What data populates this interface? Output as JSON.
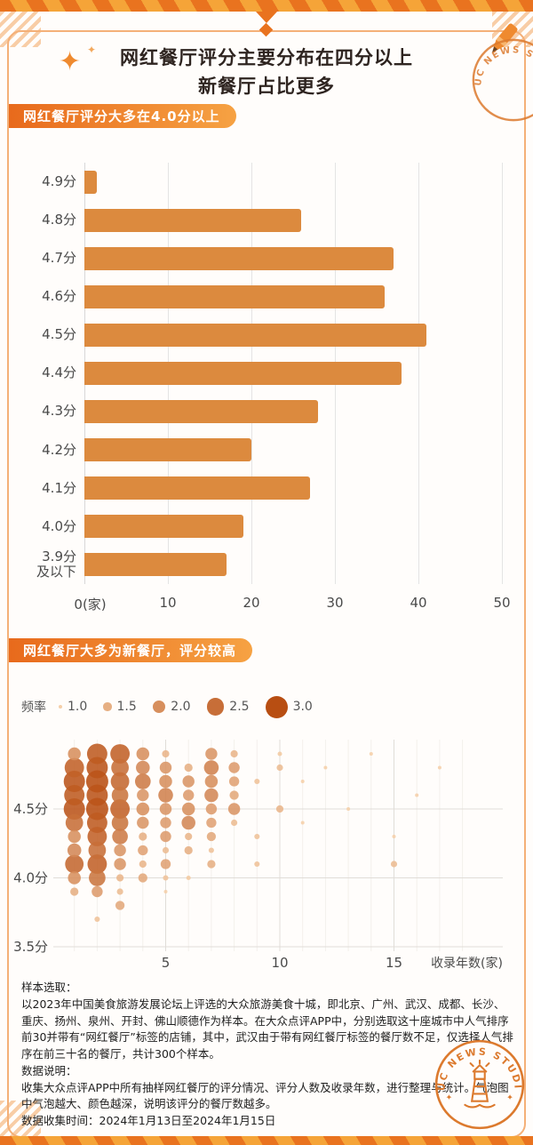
{
  "header": {
    "title_line1": "网红餐厅评分主要分布在四分以上",
    "title_line2": "新餐厅占比更多",
    "sparkle_icon": "✦"
  },
  "sections": {
    "bar_banner": "网红餐厅评分大多在4.0分以上",
    "bubble_banner": "网红餐厅大多为新餐厅，评分较高"
  },
  "colors": {
    "accent_orange": "#E9731F",
    "banner_gradient_start": "#E86A1C",
    "banner_gradient_end": "#F6A243",
    "bar_fill": "#DC8A3E",
    "bubble_low": "#F5CFA8",
    "bubble_high": "#B84E12",
    "stamp": "#DC7A2E"
  },
  "chart_data": [
    {
      "type": "bar",
      "orientation": "horizontal",
      "title": "网红餐厅评分大多在4.0分以上",
      "categories": [
        "4.9分",
        "4.8分",
        "4.7分",
        "4.6分",
        "4.5分",
        "4.4分",
        "4.3分",
        "4.2分",
        "4.1分",
        "4.0分",
        "3.9分\n及以下"
      ],
      "values": [
        1.5,
        26,
        37,
        36,
        41,
        38,
        28,
        20,
        27,
        19,
        17
      ],
      "xlim": [
        0,
        50
      ],
      "x_ticks": [
        {
          "value": 0,
          "label": "0(家)"
        },
        {
          "value": 10,
          "label": "10"
        },
        {
          "value": 20,
          "label": "20"
        },
        {
          "value": 30,
          "label": "30"
        },
        {
          "value": 40,
          "label": "40"
        },
        {
          "value": 50,
          "label": "50"
        }
      ],
      "bar_color": "#DC8A3E",
      "grid": true
    },
    {
      "type": "scatter",
      "subtype": "bubble",
      "title": "网红餐厅大多为新餐厅，评分较高",
      "xlabel": "收录年数(家)",
      "legend": {
        "title": "频率",
        "sizes": [
          1.0,
          1.5,
          2.0,
          2.5,
          3.0
        ],
        "position": "top-left"
      },
      "y_ticks": [
        {
          "value": 4.5,
          "label": "4.5分"
        },
        {
          "value": 4.0,
          "label": "4.0分"
        },
        {
          "value": 3.5,
          "label": "3.5分"
        }
      ],
      "x_ticks": [
        {
          "value": 5,
          "label": "5"
        },
        {
          "value": 10,
          "label": "10"
        },
        {
          "value": 15,
          "label": "15"
        }
      ],
      "xlim": [
        0,
        20
      ],
      "ylim": [
        3.4,
        5.0
      ],
      "color_scale": {
        "low": "#F5CFA8",
        "high": "#B84E12"
      },
      "points": [
        [
          1,
          4.9,
          2
        ],
        [
          2,
          4.9,
          2.8
        ],
        [
          3,
          4.9,
          2.7
        ],
        [
          4,
          4.9,
          2
        ],
        [
          5,
          4.9,
          1.4
        ],
        [
          7,
          4.9,
          1.9
        ],
        [
          8,
          4.9,
          1.4
        ],
        [
          10,
          4.9,
          1.1
        ],
        [
          14,
          4.9,
          1
        ],
        [
          1,
          4.8,
          2.7
        ],
        [
          2,
          4.8,
          2.9
        ],
        [
          3,
          4.8,
          2.5
        ],
        [
          4,
          4.8,
          2.1
        ],
        [
          5,
          4.8,
          1.9
        ],
        [
          6,
          4.8,
          1.5
        ],
        [
          7,
          4.8,
          2.2
        ],
        [
          8,
          4.8,
          1.8
        ],
        [
          10,
          4.8,
          1.3
        ],
        [
          12,
          4.8,
          1
        ],
        [
          17,
          4.8,
          1
        ],
        [
          1,
          4.7,
          2.9
        ],
        [
          2,
          4.7,
          3
        ],
        [
          3,
          4.7,
          2.6
        ],
        [
          4,
          4.7,
          2.3
        ],
        [
          5,
          4.7,
          2
        ],
        [
          6,
          4.7,
          1.9
        ],
        [
          7,
          4.7,
          2
        ],
        [
          8,
          4.7,
          1.7
        ],
        [
          9,
          4.7,
          1.2
        ],
        [
          11,
          4.7,
          1
        ],
        [
          1,
          4.6,
          2.8
        ],
        [
          2,
          4.6,
          2.9
        ],
        [
          3,
          4.6,
          2.4
        ],
        [
          4,
          4.6,
          1.9
        ],
        [
          5,
          4.6,
          2.2
        ],
        [
          6,
          4.6,
          1.8
        ],
        [
          7,
          4.6,
          2.1
        ],
        [
          8,
          4.6,
          1.6
        ],
        [
          16,
          4.6,
          1
        ],
        [
          1,
          4.5,
          2.9
        ],
        [
          2,
          4.5,
          3
        ],
        [
          3,
          4.5,
          2.7
        ],
        [
          4,
          4.5,
          2
        ],
        [
          5,
          4.5,
          1.9
        ],
        [
          6,
          4.5,
          2
        ],
        [
          7,
          4.5,
          1.8
        ],
        [
          8,
          4.5,
          1.9
        ],
        [
          10,
          4.5,
          1.4
        ],
        [
          13,
          4.5,
          1
        ],
        [
          1,
          4.4,
          2.5
        ],
        [
          2,
          4.4,
          2.8
        ],
        [
          3,
          4.4,
          2.4
        ],
        [
          4,
          4.4,
          1.9
        ],
        [
          5,
          4.4,
          1.8
        ],
        [
          6,
          4.4,
          2.1
        ],
        [
          7,
          4.4,
          1.7
        ],
        [
          8,
          4.4,
          1.3
        ],
        [
          11,
          4.4,
          1
        ],
        [
          1,
          4.3,
          2
        ],
        [
          2,
          4.3,
          2.7
        ],
        [
          3,
          4.3,
          2.3
        ],
        [
          4,
          4.3,
          1.5
        ],
        [
          5,
          4.3,
          1.8
        ],
        [
          6,
          4.3,
          1.4
        ],
        [
          7,
          4.3,
          1.6
        ],
        [
          9,
          4.3,
          1.2
        ],
        [
          15,
          4.3,
          1
        ],
        [
          1,
          4.2,
          2.1
        ],
        [
          2,
          4.2,
          2.5
        ],
        [
          3,
          4.2,
          1.9
        ],
        [
          4,
          4.2,
          1.7
        ],
        [
          5,
          4.2,
          1.3
        ],
        [
          6,
          4.2,
          1.5
        ],
        [
          7,
          4.2,
          1.2
        ],
        [
          1,
          4.1,
          2.6
        ],
        [
          2,
          4.1,
          2.7
        ],
        [
          3,
          4.1,
          1.9
        ],
        [
          4,
          4.1,
          1.4
        ],
        [
          5,
          4.1,
          1.7
        ],
        [
          7,
          4.1,
          1.5
        ],
        [
          9,
          4.1,
          1.2
        ],
        [
          15,
          4.1,
          1.3
        ],
        [
          1,
          4.0,
          2
        ],
        [
          2,
          4.0,
          2.4
        ],
        [
          3,
          4.0,
          1.4
        ],
        [
          4,
          4.0,
          1.6
        ],
        [
          5,
          4.0,
          1.2
        ],
        [
          6,
          4.0,
          1.1
        ],
        [
          1,
          3.9,
          1.5
        ],
        [
          2,
          3.9,
          1.8
        ],
        [
          3,
          3.9,
          1.3
        ],
        [
          5,
          3.9,
          1
        ],
        [
          3,
          3.8,
          1.6
        ],
        [
          2,
          3.7,
          1.2
        ]
      ]
    }
  ],
  "footer": {
    "sample_heading": "样本选取：",
    "sample_text": "以2023年中国美食旅游发展论坛上评选的大众旅游美食十城，即北京、广州、武汉、成都、长沙、重庆、扬州、泉州、开封、佛山顺德作为样本。在大众点评APP中，分别选取这十座城市中人气排序前30并带有“网红餐厅”标签的店铺，其中，武汉由于带有网红餐厅标签的餐厅数不足，仅选择人气排序在前三十名的餐厅，共计300个样本。",
    "data_heading": "数据说明：",
    "data_text": "收集大众点评APP中所有抽样网红餐厅的评分情况、评分人数及收录年数，进行整理与统计。气泡图中气泡越大、颜色越深，说明该评分的餐厅数越多。",
    "collect_time": "数据收集时间：2024年1月13日至2024年1月15日"
  },
  "stamp": {
    "text": "RUC NEWS STUDIO"
  }
}
